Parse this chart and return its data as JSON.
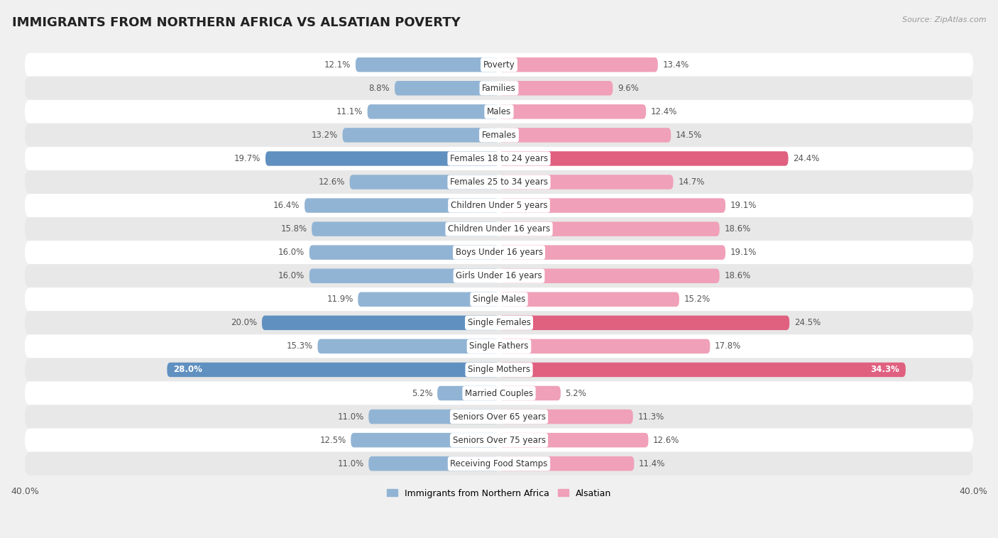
{
  "title": "IMMIGRANTS FROM NORTHERN AFRICA VS ALSATIAN POVERTY",
  "source": "Source: ZipAtlas.com",
  "categories": [
    "Poverty",
    "Families",
    "Males",
    "Females",
    "Females 18 to 24 years",
    "Females 25 to 34 years",
    "Children Under 5 years",
    "Children Under 16 years",
    "Boys Under 16 years",
    "Girls Under 16 years",
    "Single Males",
    "Single Females",
    "Single Fathers",
    "Single Mothers",
    "Married Couples",
    "Seniors Over 65 years",
    "Seniors Over 75 years",
    "Receiving Food Stamps"
  ],
  "left_values": [
    12.1,
    8.8,
    11.1,
    13.2,
    19.7,
    12.6,
    16.4,
    15.8,
    16.0,
    16.0,
    11.9,
    20.0,
    15.3,
    28.0,
    5.2,
    11.0,
    12.5,
    11.0
  ],
  "right_values": [
    13.4,
    9.6,
    12.4,
    14.5,
    24.4,
    14.7,
    19.1,
    18.6,
    19.1,
    18.6,
    15.2,
    24.5,
    17.8,
    34.3,
    5.2,
    11.3,
    12.6,
    11.4
  ],
  "left_color": "#92b4d4",
  "right_color": "#f0a0b8",
  "left_highlight_color": "#6090c0",
  "right_highlight_color": "#e06080",
  "highlight_rows": [
    4,
    11,
    13
  ],
  "max_value": 40.0,
  "legend_left": "Immigrants from Northern Africa",
  "legend_right": "Alsatian",
  "background_color": "#f0f0f0",
  "row_bg_white": "#ffffff",
  "row_bg_gray": "#e8e8e8",
  "title_fontsize": 13,
  "value_fontsize": 8.5,
  "cat_fontsize": 8.5,
  "bar_height": 0.62,
  "label_inside_threshold": 26.0
}
